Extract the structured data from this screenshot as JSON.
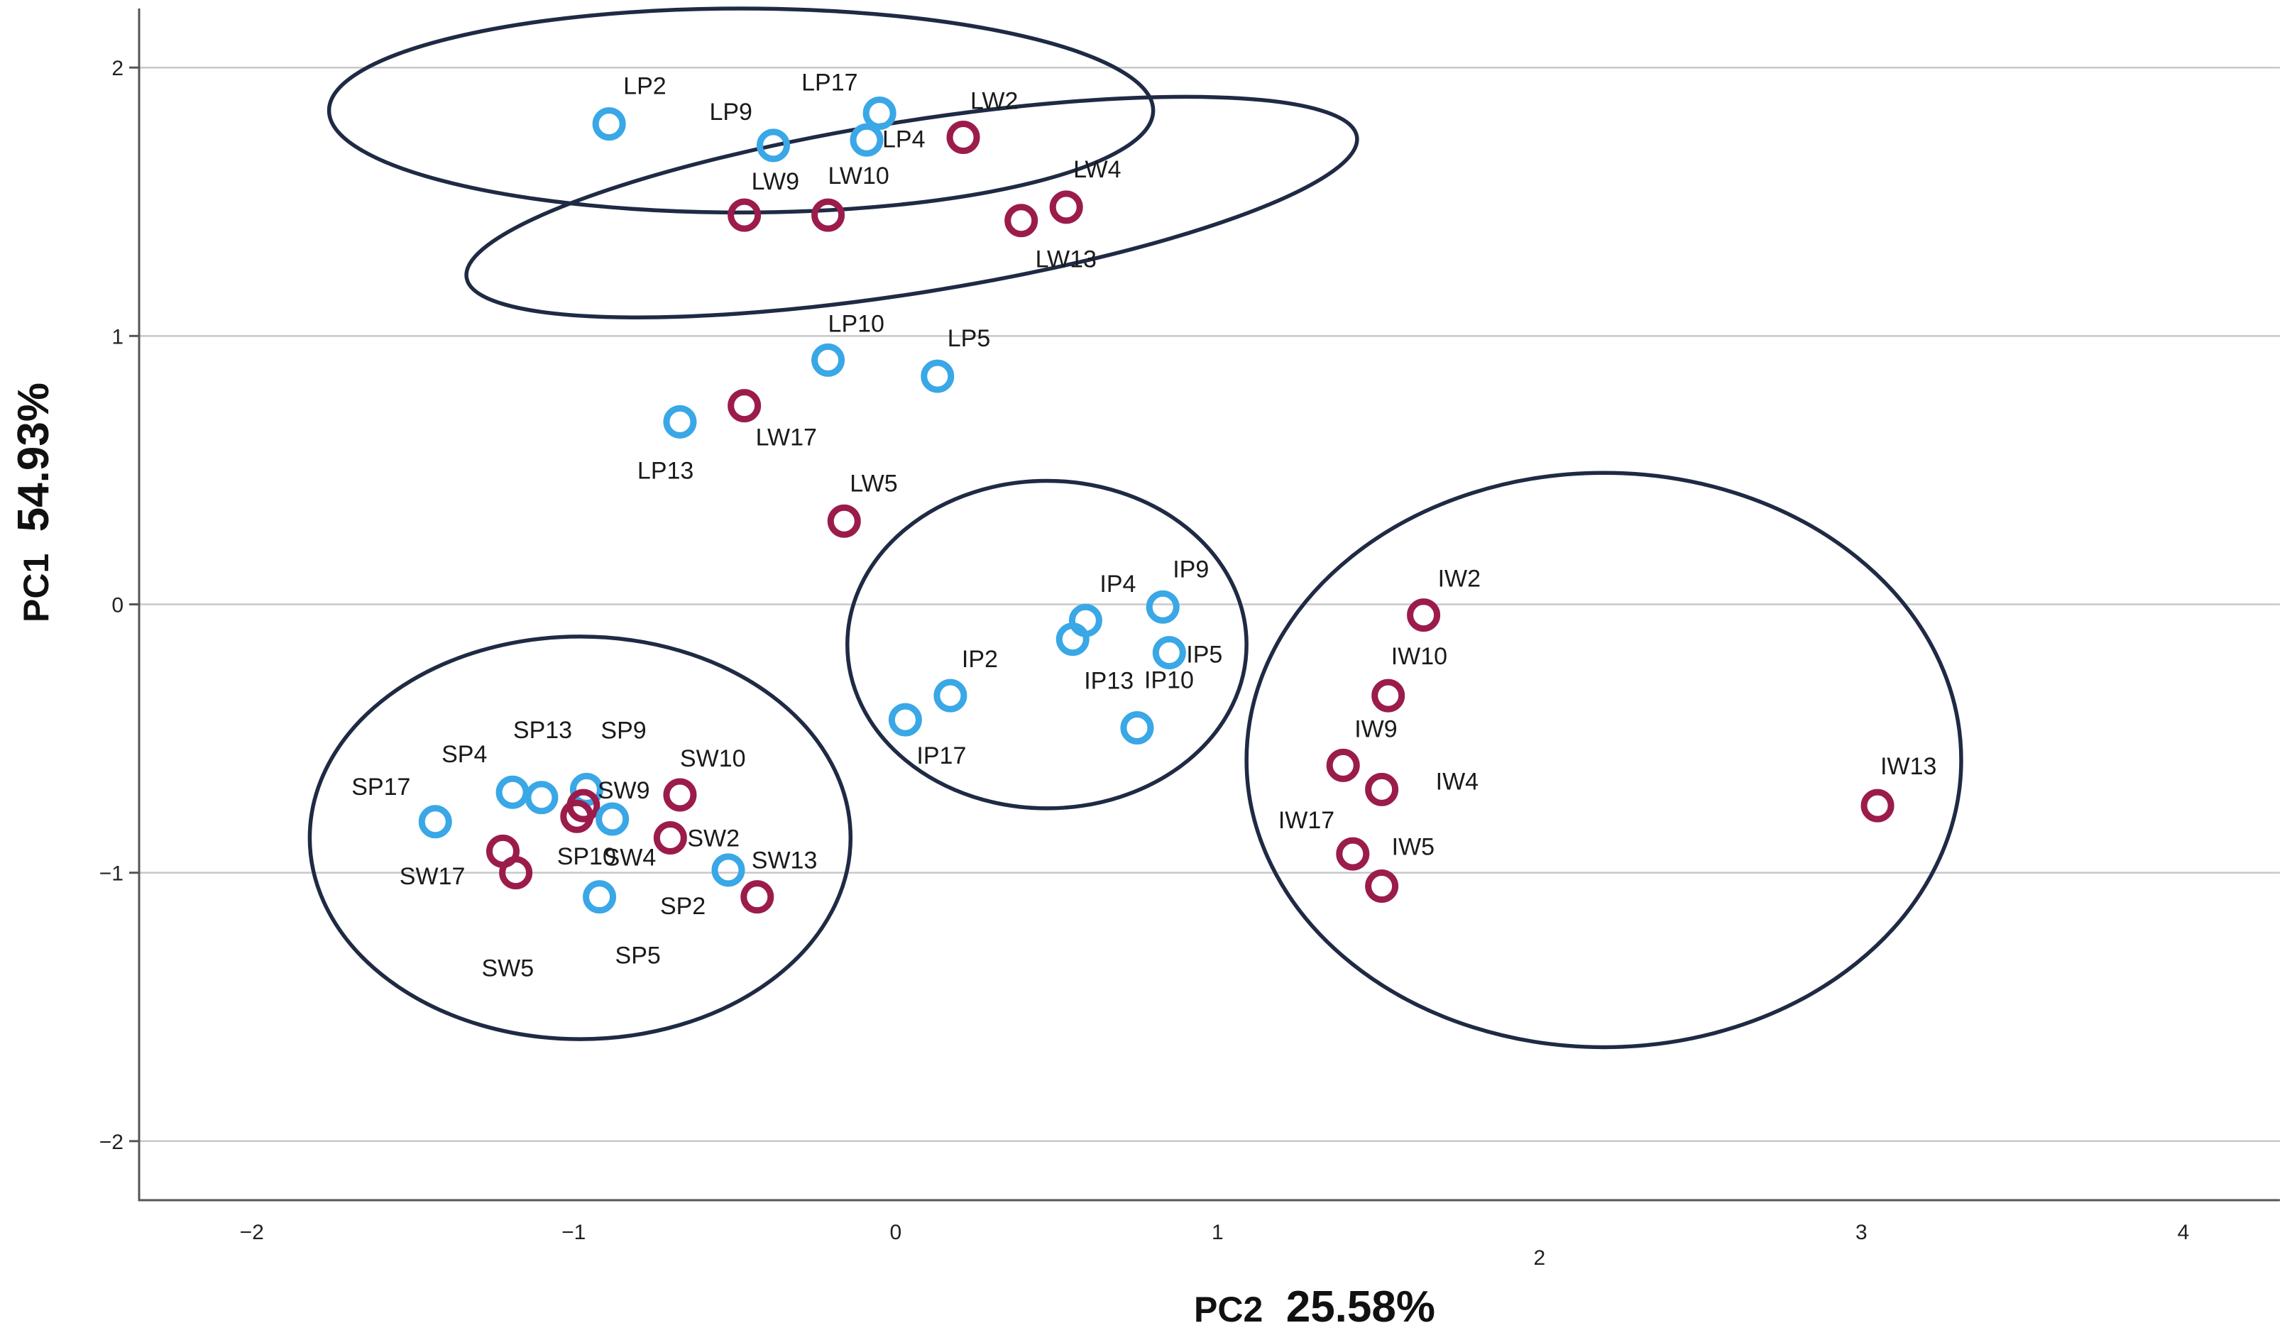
{
  "chart_data": {
    "type": "scatter",
    "xlabel_name": "PC2",
    "xlabel_pct": "25.58%",
    "ylabel_name": "PC1",
    "ylabel_pct": "54.93%",
    "xlim": [
      -2.35,
      4.3
    ],
    "ylim": [
      -2.22,
      2.22
    ],
    "x_ticks": [
      "−2",
      "−1",
      "0",
      "1",
      "2",
      "3",
      "4"
    ],
    "y_ticks": [
      "2",
      "1",
      "0",
      "−1",
      "−2"
    ],
    "grid": "horizontal",
    "colors": {
      "P": "#3aa7e6",
      "W": "#9b1c4b"
    },
    "points": [
      {
        "label": "LP2",
        "x": -0.89,
        "y": 1.79,
        "group": "P"
      },
      {
        "label": "LP9",
        "x": -0.38,
        "y": 1.71,
        "group": "P"
      },
      {
        "label": "LP17",
        "x": -0.05,
        "y": 1.83,
        "group": "P"
      },
      {
        "label": "LP4",
        "x": -0.09,
        "y": 1.73,
        "group": "P"
      },
      {
        "label": "LW2",
        "x": 0.21,
        "y": 1.74,
        "group": "W"
      },
      {
        "label": "LW9",
        "x": -0.47,
        "y": 1.45,
        "group": "W"
      },
      {
        "label": "LW10",
        "x": -0.21,
        "y": 1.45,
        "group": "W"
      },
      {
        "label": "LW4",
        "x": 0.53,
        "y": 1.48,
        "group": "W"
      },
      {
        "label": "LW13",
        "x": 0.39,
        "y": 1.43,
        "group": "W"
      },
      {
        "label": "LP10",
        "x": -0.21,
        "y": 0.91,
        "group": "P"
      },
      {
        "label": "LP5",
        "x": 0.13,
        "y": 0.85,
        "group": "P"
      },
      {
        "label": "LW17",
        "x": -0.47,
        "y": 0.74,
        "group": "W"
      },
      {
        "label": "LP13",
        "x": -0.67,
        "y": 0.68,
        "group": "P"
      },
      {
        "label": "LW5",
        "x": -0.16,
        "y": 0.31,
        "group": "W"
      },
      {
        "label": "IP4",
        "x": 0.59,
        "y": -0.06,
        "group": "P"
      },
      {
        "label": "IP9",
        "x": 0.83,
        "y": -0.01,
        "group": "P"
      },
      {
        "label": "IP5",
        "x": 0.85,
        "y": -0.18,
        "group": "P"
      },
      {
        "label": "IP13",
        "x": 0.55,
        "y": -0.13,
        "group": "P"
      },
      {
        "label": "IP10",
        "x": 0.75,
        "y": -0.46,
        "group": "P"
      },
      {
        "label": "IP2",
        "x": 0.17,
        "y": -0.34,
        "group": "P"
      },
      {
        "label": "IP17",
        "x": 0.03,
        "y": -0.43,
        "group": "P"
      },
      {
        "label": "IW2",
        "x": 1.64,
        "y": -0.04,
        "group": "W"
      },
      {
        "label": "IW10",
        "x": 1.53,
        "y": -0.34,
        "group": "W"
      },
      {
        "label": "IW9",
        "x": 1.39,
        "y": -0.6,
        "group": "W"
      },
      {
        "label": "IW4",
        "x": 1.51,
        "y": -0.69,
        "group": "W"
      },
      {
        "label": "IW17",
        "x": 1.42,
        "y": -0.93,
        "group": "W"
      },
      {
        "label": "IW5",
        "x": 1.51,
        "y": -1.05,
        "group": "W"
      },
      {
        "label": "IW13",
        "x": 3.05,
        "y": -0.75,
        "group": "W"
      },
      {
        "label": "SP17",
        "x": -1.43,
        "y": -0.81,
        "group": "P"
      },
      {
        "label": "SP4",
        "x": -1.19,
        "y": -0.7,
        "group": "P"
      },
      {
        "label": "SP13",
        "x": -1.1,
        "y": -0.72,
        "group": "P"
      },
      {
        "label": "SP9",
        "x": -0.96,
        "y": -0.69,
        "group": "P"
      },
      {
        "label": "SW9",
        "x": -0.97,
        "y": -0.75,
        "group": "W"
      },
      {
        "label": "SP10",
        "x": -0.88,
        "y": -0.8,
        "group": "P"
      },
      {
        "label": "SW10",
        "x": -0.67,
        "y": -0.71,
        "group": "W"
      },
      {
        "label": "SW17",
        "x": -0.99,
        "y": -0.79,
        "group": "W"
      },
      {
        "label": "SW2",
        "x": -0.7,
        "y": -0.87,
        "group": "W"
      },
      {
        "label": "SW5",
        "x": -1.22,
        "y": -0.92,
        "group": "W"
      },
      {
        "label": "SW4",
        "x": -1.18,
        "y": -1.0,
        "group": "W"
      },
      {
        "label": "SP2",
        "x": -0.52,
        "y": -0.99,
        "group": "P"
      },
      {
        "label": "SW13",
        "x": -0.43,
        "y": -1.09,
        "group": "W"
      },
      {
        "label": "SP5",
        "x": -0.92,
        "y": -1.09,
        "group": "P"
      }
    ]
  }
}
